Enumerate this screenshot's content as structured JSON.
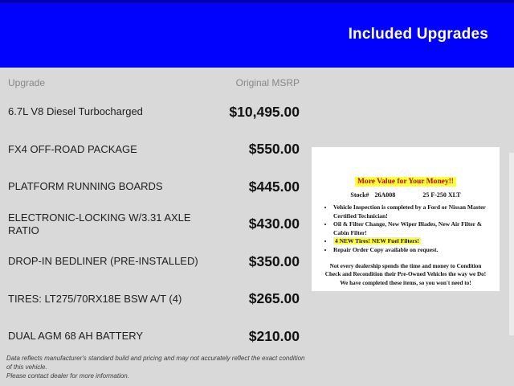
{
  "header": {
    "title": "Included Upgrades"
  },
  "table": {
    "columns": [
      "Upgrade",
      "Original MSRP"
    ],
    "rows": [
      {
        "name": "6.7L V8 Diesel Turbocharged",
        "msrp": "$10,495.00"
      },
      {
        "name": "FX4 OFF-ROAD PACKAGE",
        "msrp": "$550.00"
      },
      {
        "name": "PLATFORM RUNNING BOARDS",
        "msrp": "$445.00"
      },
      {
        "name": "ELECTRONIC-LOCKING W/3.31 AXLE RATIO",
        "msrp": "$430.00"
      },
      {
        "name": "DROP-IN BEDLINER (PRE-INSTALLED)",
        "msrp": "$350.00"
      },
      {
        "name": "TIRES: LT275/70RX18E BSW A/T (4)",
        "msrp": "$265.00"
      },
      {
        "name": "DUAL AGM 68 AH BATTERY",
        "msrp": "$210.00"
      }
    ]
  },
  "value_card": {
    "title": "More Value for Your Money!!",
    "stock_label": "Stock#",
    "stock_number": "26A008",
    "vehicle": "25 F-250 XLT",
    "bullets": [
      {
        "text": "Vehicle Inspection is completed by a Ford or Nissan Master Certified Technician!",
        "highlight": false
      },
      {
        "text": "Oil & Filter Change, New Wiper Blades, New Air Filter & Cabin Filter!",
        "highlight": false
      },
      {
        "text": "4 NEW Tires! NEW Fuel Filters!",
        "highlight": true
      },
      {
        "text": "Repair Order Copy available on request.",
        "highlight": false
      }
    ],
    "closing": "Not every dealership spends the time and money to Condition Check and Recondition their Pre-Owned Vehicles the way we Do! We have completed these items, so you won't need to!"
  },
  "disclaimer": {
    "line1": "Data reflects manufacturer's standard build and pricing and may not accurately reflect the exact condition of this vehicle.",
    "line2": "Please contact dealer for more information."
  },
  "colors": {
    "header_bg": "#0101fe",
    "header_top_stripe": "#0000ad",
    "page_bg": "#d9d9d9",
    "card_title_red": "#cb0000",
    "highlight_yellow": "#ffff3d"
  }
}
